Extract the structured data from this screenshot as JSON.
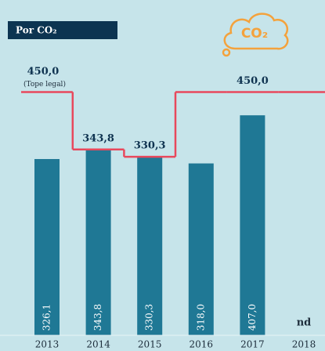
{
  "chart_data": {
    "type": "bar",
    "title": "Por CO₂",
    "icon_label": "CO₂",
    "categories": [
      "2013",
      "2014",
      "2015",
      "2016",
      "2017",
      "2018"
    ],
    "values": [
      326.1,
      343.8,
      330.3,
      318.0,
      407.0,
      null
    ],
    "value_labels": [
      "326,1",
      "343,8",
      "330,3",
      "318,0",
      "407,0",
      "nd"
    ],
    "color": "#1f7895",
    "limit": {
      "color": "#e8485c",
      "annotation": "(Tope legal)",
      "values": [
        450.0,
        343.8,
        330.3,
        450.0,
        450.0,
        450.0
      ],
      "value_labels": [
        "450,0",
        "343,8",
        "330,3",
        null,
        "450,0",
        null
      ]
    },
    "ylim": [
      0,
      600
    ]
  }
}
